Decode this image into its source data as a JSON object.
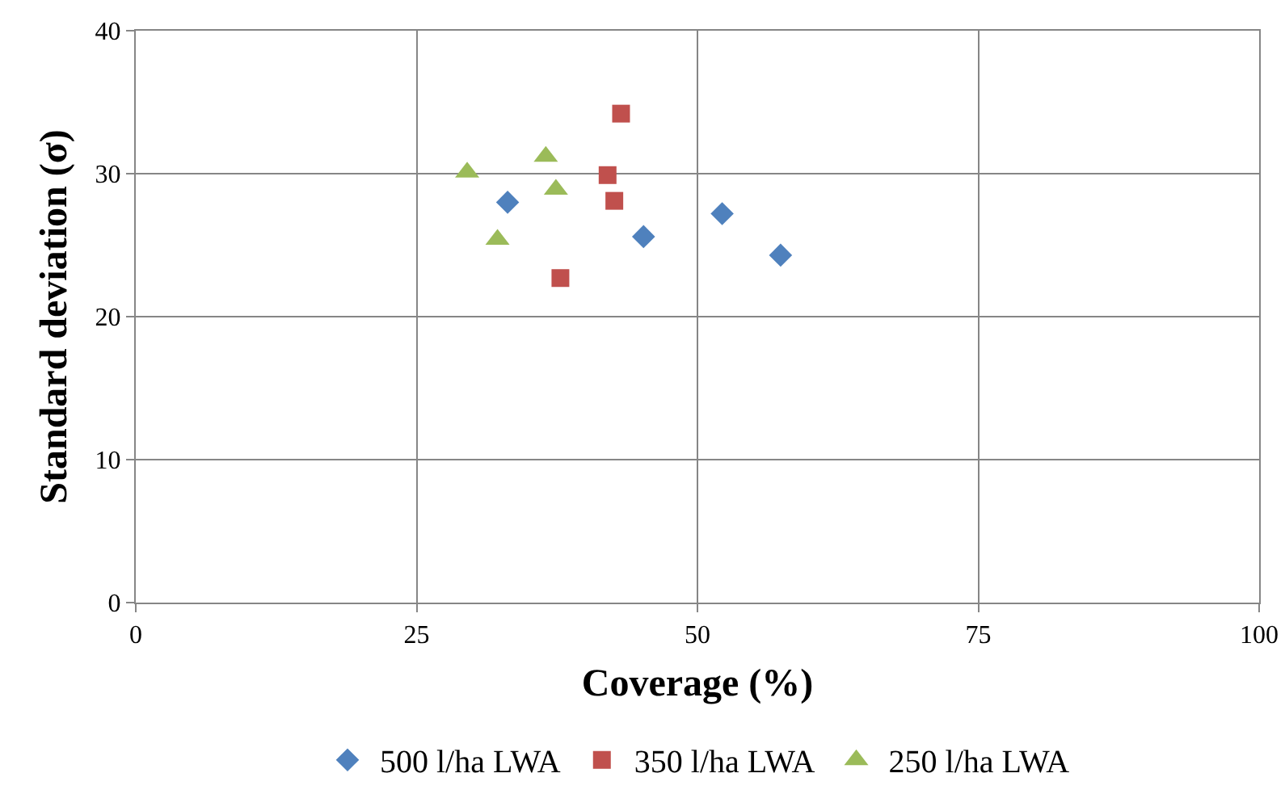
{
  "chart_data": {
    "type": "scatter",
    "xlabel": "Coverage (%)",
    "ylabel": "Standard deviation (σ)",
    "xlim": [
      0,
      100
    ],
    "xticks": [
      0,
      25,
      50,
      75,
      100
    ],
    "ylim": [
      0,
      40
    ],
    "yticks": [
      0,
      10,
      20,
      30,
      40
    ],
    "grid": true,
    "legend": "bottom",
    "series": [
      {
        "name": "500 l/ha LWA",
        "color": "#4f81bd",
        "marker": "diamond",
        "x": [
          33.1,
          45.2,
          52.2,
          57.4
        ],
        "values": [
          28.0,
          25.6,
          27.2,
          24.3
        ]
      },
      {
        "name": "350 l/ha LWA",
        "color": "#c0504d",
        "marker": "square",
        "x": [
          43.2,
          42.0,
          42.6,
          37.8
        ],
        "values": [
          34.2,
          29.9,
          28.1,
          22.7
        ]
      },
      {
        "name": "250 l/ha LWA",
        "color": "#9bbb59",
        "marker": "triangle",
        "x": [
          29.5,
          36.5,
          37.4,
          32.2
        ],
        "values": [
          30.1,
          31.2,
          28.9,
          25.4
        ]
      }
    ]
  }
}
